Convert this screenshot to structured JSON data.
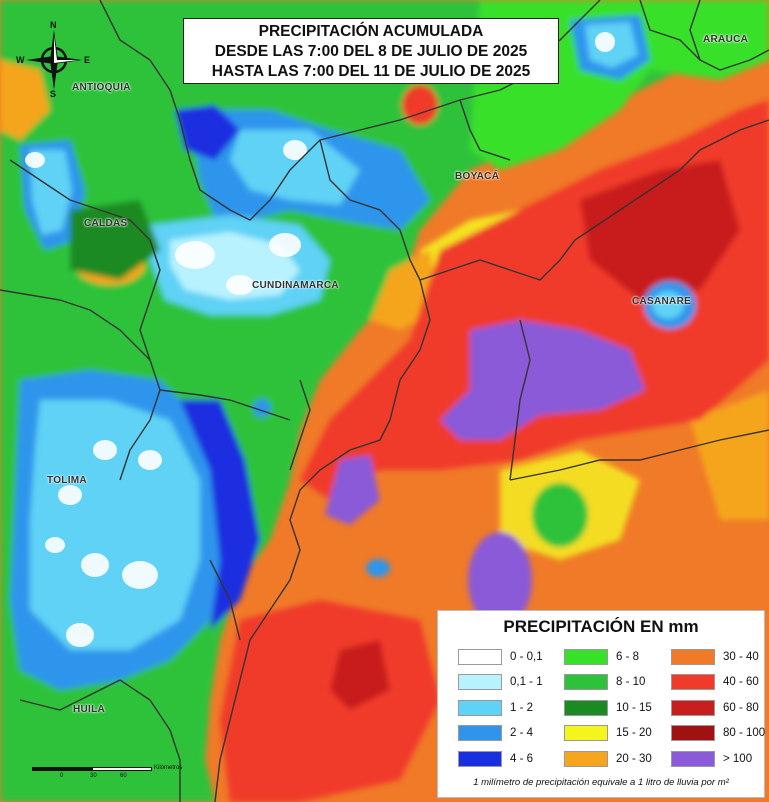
{
  "title": {
    "line1": "PRECIPITACIÓN ACUMULADA",
    "line2": "DESDE LAS 7:00 DEL 8 DE JULIO DE 2025",
    "line3": "HASTA LAS 7:00 DEL 11 DE JULIO DE 2025"
  },
  "compass": {
    "n": "N",
    "s": "S",
    "e": "E",
    "w": "W"
  },
  "regions": [
    {
      "name": "ANTIOQUIA"
    },
    {
      "name": "ARAUCA"
    },
    {
      "name": "BOYACÁ"
    },
    {
      "name": "CALDAS"
    },
    {
      "name": "CUNDINAMARCA"
    },
    {
      "name": "CASANARE"
    },
    {
      "name": "TOLIMA"
    },
    {
      "name": "HUILA"
    }
  ],
  "legend": {
    "title": "PRECIPITACIÓN EN mm",
    "items": [
      {
        "label": "0 - 0,1",
        "color": "#ffffff"
      },
      {
        "label": "0,1 - 1",
        "color": "#b8f2ff"
      },
      {
        "label": "1 - 2",
        "color": "#5fd2f5"
      },
      {
        "label": "2 - 4",
        "color": "#2f95ec"
      },
      {
        "label": "4 - 6",
        "color": "#1a2fe0"
      },
      {
        "label": "6 - 8",
        "color": "#38e02a"
      },
      {
        "label": "8 - 10",
        "color": "#2ec23a"
      },
      {
        "label": "10 - 15",
        "color": "#1c8a22"
      },
      {
        "label": "15 - 20",
        "color": "#f5f51e"
      },
      {
        "label": "20 - 30",
        "color": "#f5a51e"
      },
      {
        "label": "30 - 40",
        "color": "#f07a28"
      },
      {
        "label": "40 - 60",
        "color": "#f03a2a"
      },
      {
        "label": "60 - 80",
        "color": "#c81e1e"
      },
      {
        "label": "80 - 100",
        "color": "#a01212"
      },
      {
        "label": "> 100",
        "color": "#8a5ad8"
      }
    ],
    "note": "1 milímetro de precipitación equivale a 1 litro de lluvia por m²"
  },
  "scale": {
    "ticks": [
      "0",
      "30",
      "60"
    ],
    "unit": "Kilómetros"
  }
}
